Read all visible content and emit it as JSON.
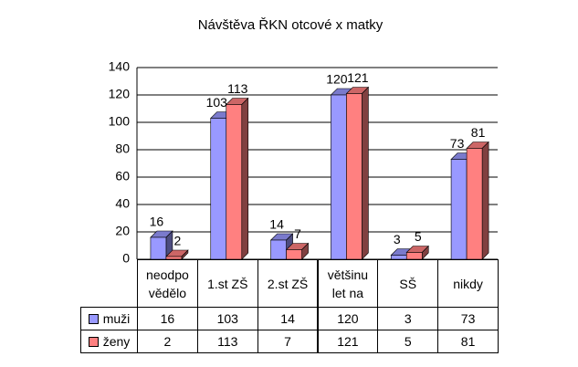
{
  "chart_data": {
    "type": "bar",
    "title": "Návštěva ŘKN otcové x matky",
    "categories": [
      "neodpo\nvědělo",
      "1.st ZŠ",
      "2.st ZŠ",
      "většinu\nlet na",
      "SŠ",
      "nikdy"
    ],
    "series": [
      {
        "name": "muži",
        "color": "#9999ff",
        "values": [
          16,
          103,
          14,
          120,
          3,
          73
        ]
      },
      {
        "name": "ženy",
        "color": "#ff8080",
        "values": [
          2,
          113,
          7,
          121,
          5,
          81
        ]
      }
    ],
    "ylim": [
      0,
      140
    ],
    "yticks": [
      0,
      20,
      40,
      60,
      80,
      100,
      120,
      140
    ],
    "grid": true,
    "data_table": true
  }
}
